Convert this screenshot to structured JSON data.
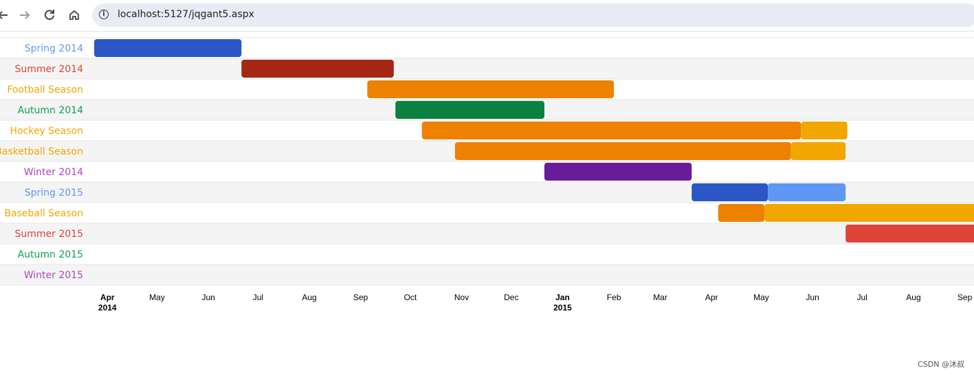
{
  "browser": {
    "url": "localhost:5127/jqgant5.aspx",
    "icons": [
      "back-arrow-icon",
      "forward-arrow-icon",
      "reload-icon",
      "home-icon",
      "info-icon"
    ]
  },
  "chart_data": {
    "type": "gantt",
    "x_range": [
      "2014-03-24",
      "2015-09-25"
    ],
    "rows": [
      {
        "label": "Spring 2014",
        "color": "#5e97f6",
        "bars": [
          {
            "start": "2014-03-24",
            "end": "2014-06-21",
            "color": "#2a56c6"
          }
        ]
      },
      {
        "label": "Summer 2014",
        "color": "#db4437",
        "bars": [
          {
            "start": "2014-06-21",
            "end": "2014-09-21",
            "color": "#a52714"
          }
        ]
      },
      {
        "label": "Football Season",
        "color": "#f2a600",
        "bars": [
          {
            "start": "2014-09-05",
            "end": "2015-02-01",
            "color": "#ee8100"
          }
        ]
      },
      {
        "label": "Autumn 2014",
        "color": "#0f9d58",
        "bars": [
          {
            "start": "2014-09-22",
            "end": "2014-12-21",
            "color": "#0b8043"
          }
        ]
      },
      {
        "label": "Hockey Season",
        "color": "#f2a600",
        "bars": [
          {
            "start": "2014-10-08",
            "end": "2015-05-25",
            "color": "#ee8100"
          },
          {
            "start": "2015-05-25",
            "end": "2015-06-22",
            "color": "#f2a600"
          }
        ]
      },
      {
        "label": "Basketball Season",
        "color": "#f2a600",
        "bars": [
          {
            "start": "2014-10-28",
            "end": "2015-05-19",
            "color": "#ee8100"
          },
          {
            "start": "2015-05-19",
            "end": "2015-06-21",
            "color": "#f2a600"
          }
        ]
      },
      {
        "label": "Winter 2014",
        "color": "#ab47bc",
        "bars": [
          {
            "start": "2014-12-21",
            "end": "2015-03-20",
            "color": "#6a1b9a"
          }
        ]
      },
      {
        "label": "Spring 2015",
        "color": "#5e97f6",
        "bars": [
          {
            "start": "2015-03-20",
            "end": "2015-05-05",
            "color": "#2a56c6"
          },
          {
            "start": "2015-05-05",
            "end": "2015-06-21",
            "color": "#5e97f6"
          }
        ]
      },
      {
        "label": "Baseball Season",
        "color": "#f2a600",
        "bars": [
          {
            "start": "2015-04-05",
            "end": "2015-05-03",
            "color": "#ee8100"
          },
          {
            "start": "2015-05-03",
            "end": "2015-10-04",
            "color": "#f2a600"
          }
        ]
      },
      {
        "label": "Summer 2015",
        "color": "#db4437",
        "bars": [
          {
            "start": "2015-06-21",
            "end": "2015-09-23",
            "color": "#db4437"
          }
        ]
      },
      {
        "label": "Autumn 2015",
        "color": "#0f9d58",
        "bars": []
      },
      {
        "label": "Winter 2015",
        "color": "#ab47bc",
        "bars": []
      }
    ],
    "ticks": [
      {
        "date": "2014-04-01",
        "label": "Apr",
        "year": "2014",
        "bold": true
      },
      {
        "date": "2014-05-01",
        "label": "May"
      },
      {
        "date": "2014-06-01",
        "label": "Jun"
      },
      {
        "date": "2014-07-01",
        "label": "Jul"
      },
      {
        "date": "2014-08-01",
        "label": "Aug"
      },
      {
        "date": "2014-09-01",
        "label": "Sep"
      },
      {
        "date": "2014-10-01",
        "label": "Oct"
      },
      {
        "date": "2014-11-01",
        "label": "Nov"
      },
      {
        "date": "2014-12-01",
        "label": "Dec"
      },
      {
        "date": "2015-01-01",
        "label": "Jan",
        "year": "2015",
        "bold": true
      },
      {
        "date": "2015-02-01",
        "label": "Feb"
      },
      {
        "date": "2015-03-01",
        "label": "Mar"
      },
      {
        "date": "2015-04-01",
        "label": "Apr"
      },
      {
        "date": "2015-05-01",
        "label": "May"
      },
      {
        "date": "2015-06-01",
        "label": "Jun"
      },
      {
        "date": "2015-07-01",
        "label": "Jul"
      },
      {
        "date": "2015-08-01",
        "label": "Aug"
      },
      {
        "date": "2015-09-01",
        "label": "Sep"
      }
    ],
    "row_colors": {
      "odd": "#ffffff",
      "even": "#f4f4f4",
      "grid": "#e6e6e6"
    }
  },
  "watermark": "CSDN @沐叔"
}
